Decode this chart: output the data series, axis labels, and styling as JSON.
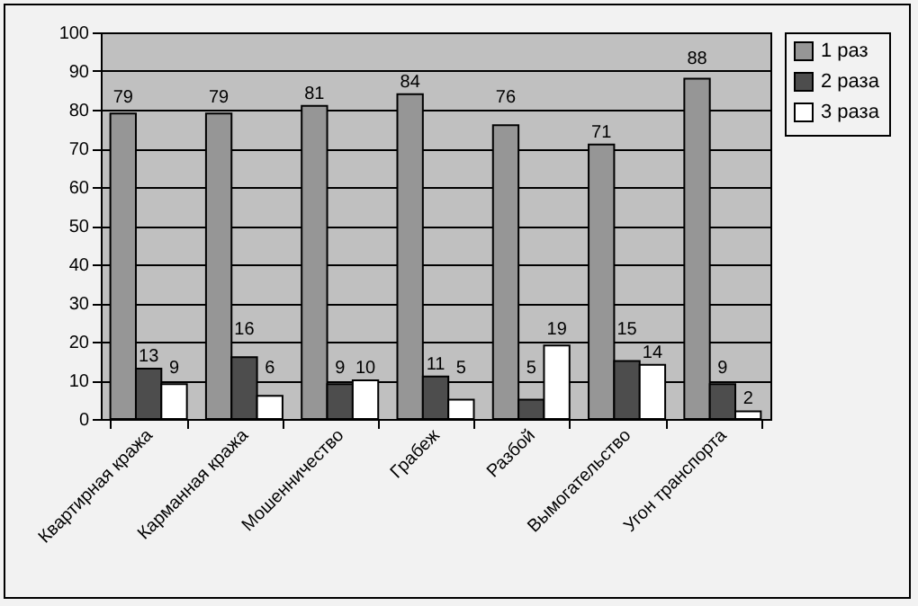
{
  "chart_data": {
    "type": "bar",
    "categories": [
      "Квартирная кража",
      "Карманная кража",
      "Мошенничество",
      "Грабеж",
      "Разбой",
      "Вымогательство",
      "Угон транспорта"
    ],
    "series": [
      {
        "name": "1 раз",
        "color": "#969696",
        "values": [
          79,
          79,
          81,
          84,
          76,
          71,
          88
        ]
      },
      {
        "name": "2 раза",
        "color": "#4d4d4d",
        "values": [
          13,
          16,
          9,
          11,
          5,
          15,
          9
        ]
      },
      {
        "name": "3 раза",
        "color": "#ffffff",
        "values": [
          9,
          6,
          10,
          5,
          19,
          14,
          2
        ]
      }
    ],
    "ylim": [
      0,
      100
    ],
    "yticks": [
      0,
      10,
      20,
      30,
      40,
      50,
      60,
      70,
      80,
      90,
      100
    ],
    "grid": "y",
    "legend": "right",
    "data_labels": true
  }
}
